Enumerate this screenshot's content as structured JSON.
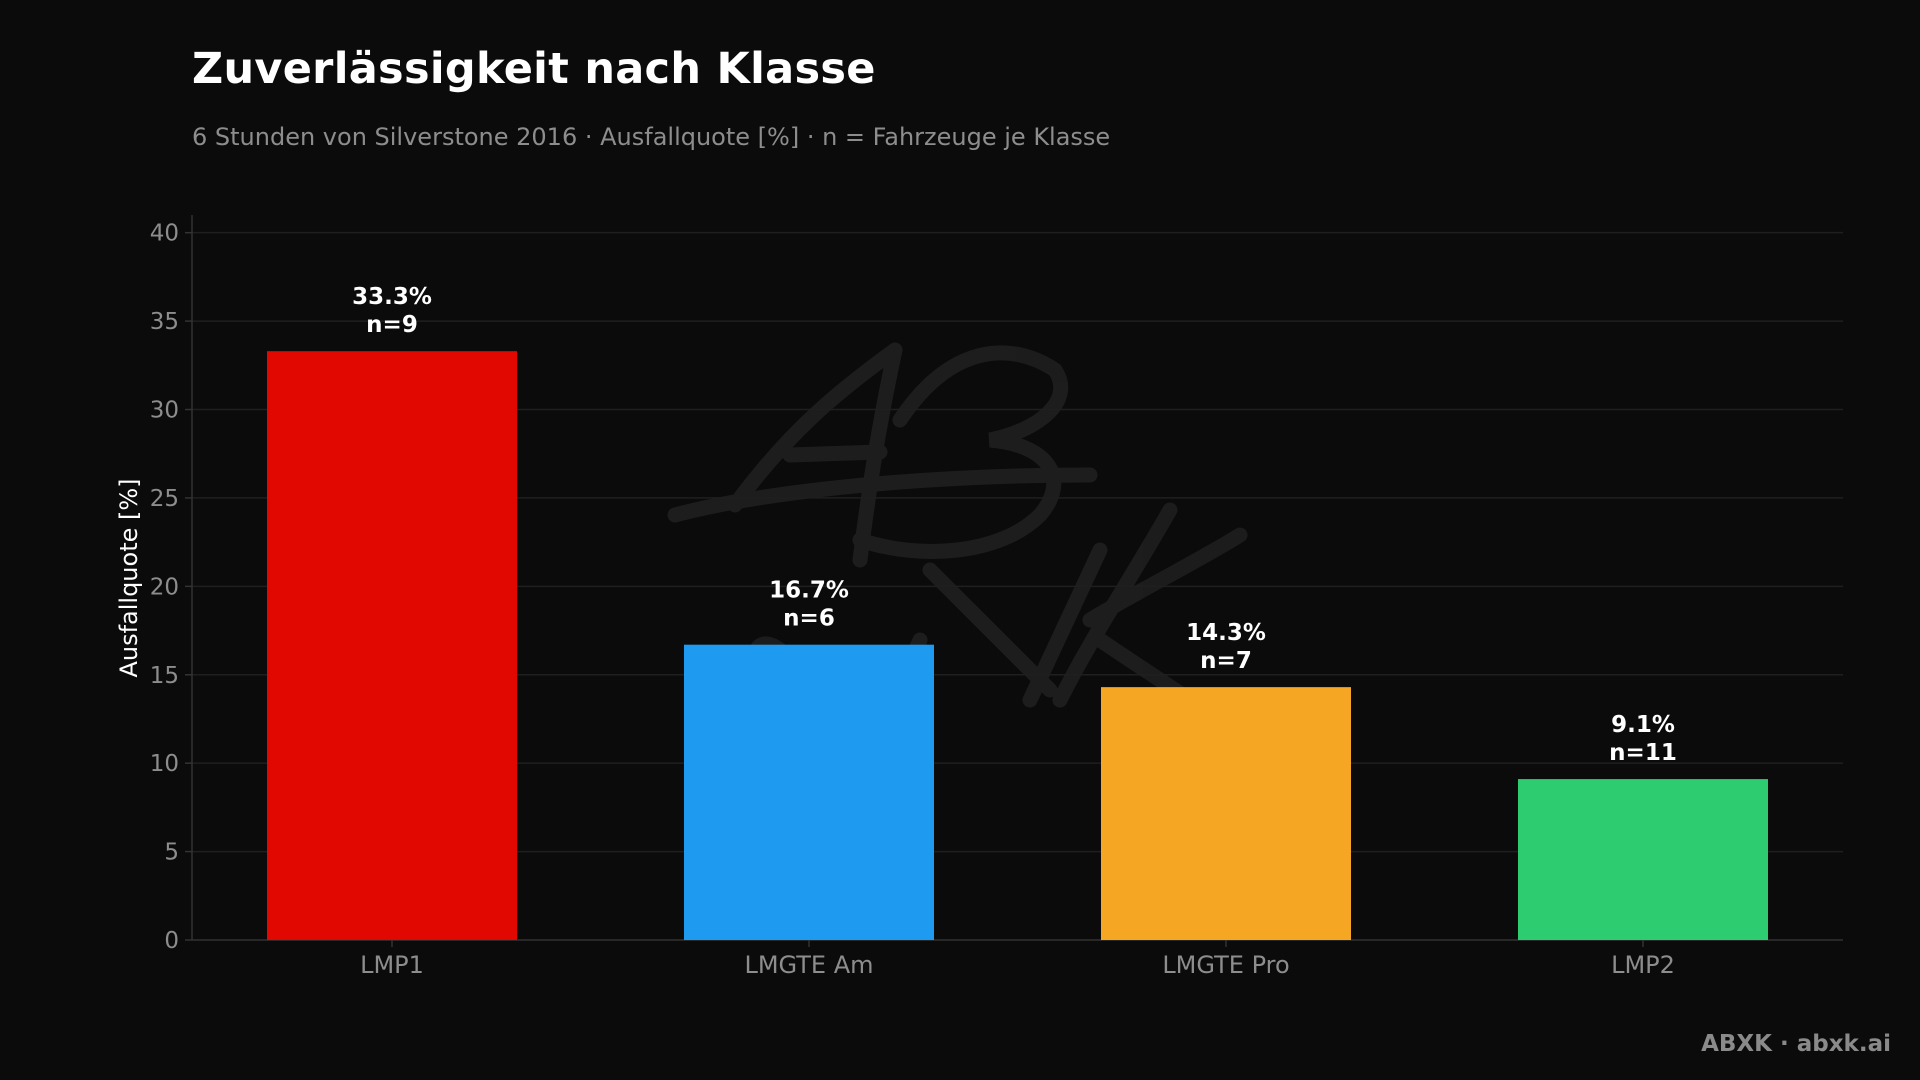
{
  "title": "Zuverlässigkeit nach Klasse",
  "subtitle": "6 Stunden von Silverstone 2016 · Ausfallquote [%] · n = Fahrzeuge je Klasse",
  "credit": "ABXK · abxk.ai",
  "watermark": "ABXK",
  "chart_data": {
    "type": "bar",
    "title": "Zuverlässigkeit nach Klasse",
    "subtitle": "6 Stunden von Silverstone 2016 · Ausfallquote [%] · n = Fahrzeuge je Klasse",
    "xlabel": "",
    "ylabel": "Ausfallquote [%]",
    "ylim": [
      0,
      41
    ],
    "yticks": [
      0,
      5,
      10,
      15,
      20,
      25,
      30,
      35,
      40
    ],
    "grid": "horizontal",
    "categories": [
      "LMP1",
      "LMGTE Am",
      "LMGTE Pro",
      "LMP2"
    ],
    "values": [
      33.3,
      16.7,
      14.3,
      9.1
    ],
    "value_labels": [
      "33.3%",
      "16.7%",
      "14.3%",
      "9.1%"
    ],
    "n_labels": [
      "n=9",
      "n=6",
      "n=7",
      "n=11"
    ],
    "colors": [
      "#e00800",
      "#1e9bf0",
      "#f5a623",
      "#2ecc71"
    ]
  },
  "style": {
    "background": "#0b0b0b",
    "axis_color": "#333333",
    "grid_color": "#1f1f1f",
    "tick_text_color": "#8d8d8d",
    "label_text_color": "#ffffff"
  }
}
